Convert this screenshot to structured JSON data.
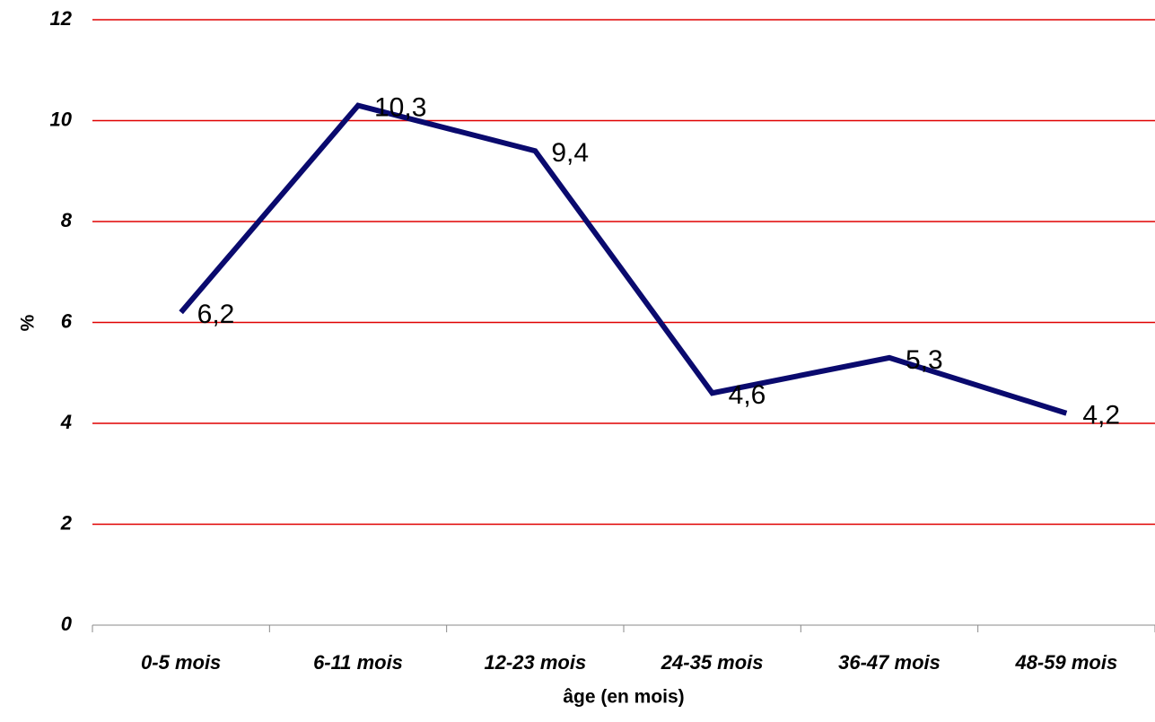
{
  "chart_data": {
    "type": "line",
    "x_label": "âge (en mois)",
    "y_label": "%",
    "categories": [
      "0-5 mois",
      "6-11 mois",
      "12-23 mois",
      "24-35 mois",
      "36-47 mois",
      "48-59 mois"
    ],
    "values": [
      6.2,
      10.3,
      9.4,
      4.6,
      5.3,
      4.2
    ],
    "value_labels": [
      "6,2",
      "10,3",
      "9,4",
      "4,6",
      "5,3",
      "4,2"
    ],
    "color": "#0a0a6e",
    "grid_color": "#e00000",
    "ylim": [
      0,
      12
    ],
    "yticks": [
      0,
      2,
      4,
      6,
      8,
      10,
      12
    ],
    "grid": true
  }
}
